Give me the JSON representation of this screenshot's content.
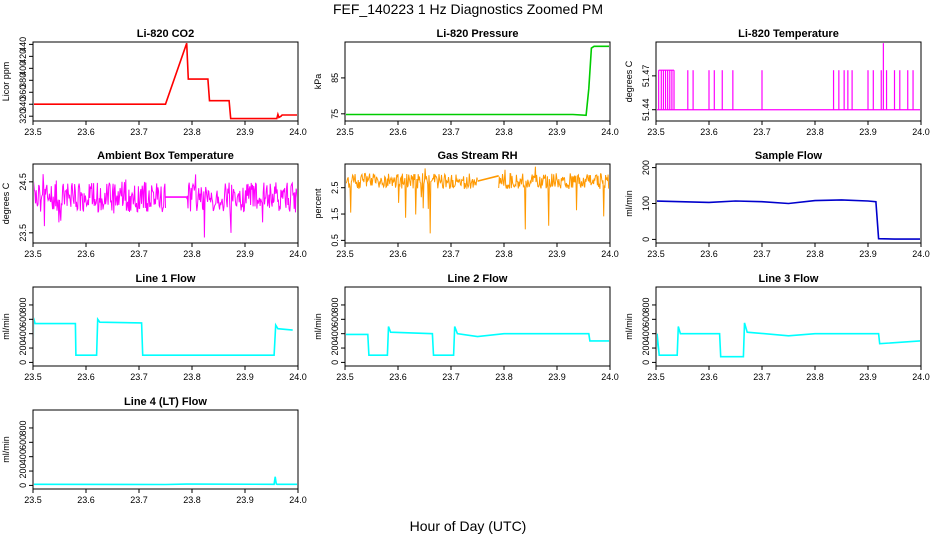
{
  "page": {
    "title": "FEF_140223  1 Hz Diagnostics Zoomed PM",
    "xlabel": "Hour of Day (UTC)"
  },
  "chart_data": [
    {
      "type": "line",
      "title": "Li-820 CO2",
      "ylabel": "Licor ppm",
      "color": "#ff0000",
      "xlim": [
        23.5,
        24.0
      ],
      "ylim": [
        312,
        444
      ],
      "xticks": [
        "23.5",
        "23.6",
        "23.7",
        "23.8",
        "23.9",
        "24.0"
      ],
      "yticks": [
        {
          "v": 320,
          "label": "320"
        },
        {
          "v": 340,
          "label": "340"
        },
        {
          "v": 360,
          "label": "360"
        },
        {
          "v": 380,
          "label": "380"
        },
        {
          "v": 400,
          "label": "400"
        },
        {
          "v": 420,
          "label": "420"
        },
        {
          "v": 440,
          "label": "440"
        }
      ],
      "series": [
        {
          "x": [
            23.5,
            23.75,
            23.79,
            23.793,
            23.83,
            23.833,
            23.87,
            23.873,
            23.96,
            23.962,
            23.964,
            23.968,
            23.97,
            24.0
          ],
          "y": [
            340,
            340,
            442,
            382,
            382,
            346,
            346,
            316,
            316,
            323,
            318,
            320,
            322,
            322
          ]
        }
      ]
    },
    {
      "type": "line",
      "title": "Li-820 Pressure",
      "ylabel": "kPa",
      "color": "#00cc00",
      "xlim": [
        23.5,
        24.0
      ],
      "ylim": [
        73,
        95
      ],
      "xticks": [
        "23.5",
        "23.6",
        "23.7",
        "23.8",
        "23.9",
        "24.0"
      ],
      "yticks": [
        {
          "v": 75,
          "label": "75"
        },
        {
          "v": 85,
          "label": "85"
        }
      ],
      "series": [
        {
          "x": [
            23.5,
            23.93,
            23.955,
            23.96,
            23.965,
            23.97,
            24.0
          ],
          "y": [
            74.8,
            74.8,
            74.6,
            82,
            93.3,
            93.8,
            93.8
          ]
        }
      ]
    },
    {
      "type": "line",
      "title": "Li-820 Temperature",
      "ylabel": "degrees C",
      "color": "#ff00ff",
      "xlim": [
        23.5,
        24.0
      ],
      "ylim": [
        51.43,
        51.5
      ],
      "xticks": [
        "23.5",
        "23.6",
        "23.7",
        "23.8",
        "23.9",
        "24.0"
      ],
      "yticks": [
        {
          "v": 51.44,
          "label": "51.44"
        },
        {
          "v": 51.47,
          "label": "51.47"
        }
      ],
      "baseline": 51.44,
      "spikes": [
        {
          "x": 23.505,
          "y": 51.475
        },
        {
          "x": 23.51,
          "y": 51.475
        },
        {
          "x": 23.514,
          "y": 51.475
        },
        {
          "x": 23.518,
          "y": 51.475
        },
        {
          "x": 23.522,
          "y": 51.475
        },
        {
          "x": 23.526,
          "y": 51.475
        },
        {
          "x": 23.53,
          "y": 51.475
        },
        {
          "x": 23.534,
          "y": 51.475
        },
        {
          "x": 23.56,
          "y": 51.475
        },
        {
          "x": 23.57,
          "y": 51.475
        },
        {
          "x": 23.6,
          "y": 51.475
        },
        {
          "x": 23.61,
          "y": 51.475
        },
        {
          "x": 23.625,
          "y": 51.475
        },
        {
          "x": 23.645,
          "y": 51.475
        },
        {
          "x": 23.7,
          "y": 51.475
        },
        {
          "x": 23.835,
          "y": 51.475
        },
        {
          "x": 23.845,
          "y": 51.475
        },
        {
          "x": 23.855,
          "y": 51.475
        },
        {
          "x": 23.862,
          "y": 51.475
        },
        {
          "x": 23.87,
          "y": 51.475
        },
        {
          "x": 23.9,
          "y": 51.475
        },
        {
          "x": 23.91,
          "y": 51.475
        },
        {
          "x": 23.925,
          "y": 51.475
        },
        {
          "x": 23.929,
          "y": 51.499
        },
        {
          "x": 23.935,
          "y": 51.475
        },
        {
          "x": 23.95,
          "y": 51.475
        },
        {
          "x": 23.96,
          "y": 51.475
        },
        {
          "x": 23.975,
          "y": 51.475
        },
        {
          "x": 23.985,
          "y": 51.475
        }
      ]
    },
    {
      "type": "line",
      "title": "Ambient Box Temperature",
      "ylabel": "degrees C",
      "color": "#ff00ff",
      "xlim": [
        23.5,
        24.0
      ],
      "ylim": [
        23.3,
        24.85
      ],
      "xticks": [
        "23.5",
        "23.6",
        "23.7",
        "23.8",
        "23.9",
        "24.0"
      ],
      "yticks": [
        {
          "v": 23.5,
          "label": "23.5"
        },
        {
          "v": 24.5,
          "label": "24.5"
        }
      ],
      "noise": {
        "segments": [
          [
            23.5,
            23.75
          ],
          [
            23.79,
            24.0
          ]
        ],
        "center": 24.2,
        "amp": 0.3,
        "ext_lo": 23.4,
        "ext_hi": 24.75
      },
      "series": [
        {
          "x": [
            23.75,
            23.79
          ],
          "y": [
            24.2,
            24.2
          ]
        }
      ]
    },
    {
      "type": "scatter",
      "title": "Gas Stream RH",
      "ylabel": "percent",
      "color": "#ff9900",
      "xlim": [
        23.5,
        24.0
      ],
      "ylim": [
        0.4,
        3.4
      ],
      "xticks": [
        "23.5",
        "23.6",
        "23.7",
        "23.8",
        "23.9",
        "24.0"
      ],
      "yticks": [
        {
          "v": 0.5,
          "label": "0.5"
        },
        {
          "v": 1.5,
          "label": "1.5"
        },
        {
          "v": 2.5,
          "label": "2.5"
        }
      ],
      "noise": {
        "segments": [
          [
            23.5,
            23.75
          ],
          [
            23.79,
            24.0
          ]
        ],
        "center": 2.75,
        "amp": 0.3,
        "ext_lo": 0.5,
        "ext_hi": 3.3
      },
      "series": [
        {
          "x": [
            23.75,
            23.79
          ],
          "y": [
            2.75,
            2.95
          ]
        }
      ]
    },
    {
      "type": "line",
      "title": "Sample Flow",
      "ylabel": "ml/min",
      "color": "#0000cc",
      "xlim": [
        23.5,
        24.0
      ],
      "ylim": [
        -10,
        210
      ],
      "xticks": [
        "23.5",
        "23.6",
        "23.7",
        "23.8",
        "23.9",
        "24.0"
      ],
      "yticks": [
        {
          "v": 0,
          "label": "0"
        },
        {
          "v": 100,
          "label": "100"
        },
        {
          "v": 200,
          "label": "200"
        }
      ],
      "series": [
        {
          "x": [
            23.5,
            23.6,
            23.65,
            23.7,
            23.75,
            23.8,
            23.85,
            23.9,
            23.915,
            23.92,
            23.95,
            24.0
          ],
          "y": [
            107,
            103,
            107,
            105,
            100,
            108,
            110,
            107,
            105,
            2,
            1,
            1
          ]
        }
      ]
    },
    {
      "type": "line",
      "title": "Line 1 Flow",
      "ylabel": "ml/min",
      "color": "#00ffff",
      "xlim": [
        23.5,
        24.0
      ],
      "ylim": [
        -50,
        1050
      ],
      "xticks": [
        "23.5",
        "23.6",
        "23.7",
        "23.8",
        "23.9",
        "24.0"
      ],
      "yticks": [
        {
          "v": 0,
          "label": "0"
        },
        {
          "v": 200,
          "label": "200"
        },
        {
          "v": 400,
          "label": "400"
        },
        {
          "v": 600,
          "label": "600"
        },
        {
          "v": 800,
          "label": "800"
        }
      ],
      "series": [
        {
          "x": [
            23.5,
            23.501,
            23.504,
            23.58,
            23.581,
            23.62,
            23.622,
            23.626,
            23.705,
            23.707,
            23.955,
            23.958,
            23.962,
            23.99
          ],
          "y": [
            100,
            620,
            540,
            540,
            100,
            100,
            600,
            560,
            550,
            100,
            100,
            520,
            470,
            450
          ]
        }
      ]
    },
    {
      "type": "line",
      "title": "Line 2 Flow",
      "ylabel": "ml/min",
      "color": "#00ffff",
      "xlim": [
        23.5,
        24.0
      ],
      "ylim": [
        -50,
        1050
      ],
      "xticks": [
        "23.5",
        "23.6",
        "23.7",
        "23.8",
        "23.9",
        "24.0"
      ],
      "yticks": [
        {
          "v": 0,
          "label": "0"
        },
        {
          "v": 200,
          "label": "200"
        },
        {
          "v": 400,
          "label": "400"
        },
        {
          "v": 600,
          "label": "600"
        },
        {
          "v": 800,
          "label": "800"
        }
      ],
      "series": [
        {
          "x": [
            23.5,
            23.543,
            23.545,
            23.58,
            23.582,
            23.586,
            23.665,
            23.667,
            23.705,
            23.707,
            23.712,
            23.75,
            23.8,
            23.96,
            23.962,
            24.0
          ],
          "y": [
            390,
            390,
            100,
            100,
            500,
            420,
            400,
            100,
            100,
            500,
            400,
            360,
            400,
            400,
            300,
            300
          ]
        }
      ]
    },
    {
      "type": "line",
      "title": "Line 3 Flow",
      "ylabel": "ml/min",
      "color": "#00ffff",
      "xlim": [
        23.5,
        24.0
      ],
      "ylim": [
        -50,
        1050
      ],
      "xticks": [
        "23.5",
        "23.6",
        "23.7",
        "23.8",
        "23.9",
        "24.0"
      ],
      "yticks": [
        {
          "v": 0,
          "label": "0"
        },
        {
          "v": 200,
          "label": "200"
        },
        {
          "v": 400,
          "label": "400"
        },
        {
          "v": 600,
          "label": "600"
        },
        {
          "v": 800,
          "label": "800"
        }
      ],
      "series": [
        {
          "x": [
            23.5,
            23.502,
            23.506,
            23.54,
            23.542,
            23.546,
            23.62,
            23.622,
            23.665,
            23.667,
            23.672,
            23.75,
            23.8,
            23.92,
            23.922,
            24.0
          ],
          "y": [
            100,
            400,
            100,
            100,
            500,
            400,
            400,
            80,
            80,
            550,
            420,
            370,
            400,
            400,
            260,
            300
          ]
        }
      ]
    },
    {
      "type": "line",
      "title": "Line 4 (LT) Flow",
      "ylabel": "ml/min",
      "color": "#00ffff",
      "xlim": [
        23.5,
        24.0
      ],
      "ylim": [
        -50,
        1050
      ],
      "xticks": [
        "23.5",
        "23.6",
        "23.7",
        "23.8",
        "23.9",
        "24.0"
      ],
      "yticks": [
        {
          "v": 0,
          "label": "0"
        },
        {
          "v": 200,
          "label": "200"
        },
        {
          "v": 400,
          "label": "400"
        },
        {
          "v": 600,
          "label": "600"
        },
        {
          "v": 800,
          "label": "800"
        }
      ],
      "series": [
        {
          "x": [
            23.5,
            23.75,
            23.79,
            23.955,
            23.957,
            23.959,
            23.961,
            24.0
          ],
          "y": [
            15,
            12,
            18,
            15,
            120,
            20,
            15,
            15
          ]
        }
      ]
    }
  ]
}
